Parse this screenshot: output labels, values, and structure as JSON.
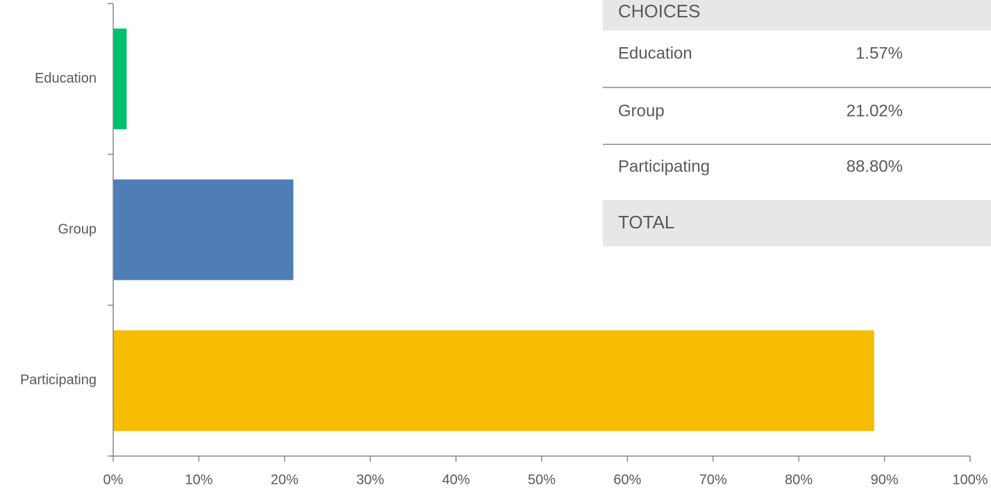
{
  "chart_data": {
    "type": "hbar",
    "categories": [
      "Education",
      "Group",
      "Participating"
    ],
    "values": [
      1.57,
      21.02,
      88.8
    ],
    "colors": [
      "#00bf6f",
      "#4f7db5",
      "#f7bd00"
    ],
    "xlim": [
      0,
      100
    ],
    "xticks": [
      {
        "value": 0,
        "label": "0%"
      },
      {
        "value": 10,
        "label": "10%"
      },
      {
        "value": 20,
        "label": "20%"
      },
      {
        "value": 30,
        "label": "30%"
      },
      {
        "value": 40,
        "label": "40%"
      },
      {
        "value": 50,
        "label": "50%"
      },
      {
        "value": 60,
        "label": "60%"
      },
      {
        "value": 70,
        "label": "70%"
      },
      {
        "value": 80,
        "label": "80%"
      },
      {
        "value": 90,
        "label": "90%"
      },
      {
        "value": 100,
        "label": "100%"
      }
    ]
  },
  "table": {
    "header": "CHOICES",
    "rows": [
      [
        "Education",
        "1.57%"
      ],
      [
        "Group",
        "21.02%"
      ],
      [
        "Participating",
        "88.80%"
      ]
    ],
    "footer": "TOTAL"
  }
}
